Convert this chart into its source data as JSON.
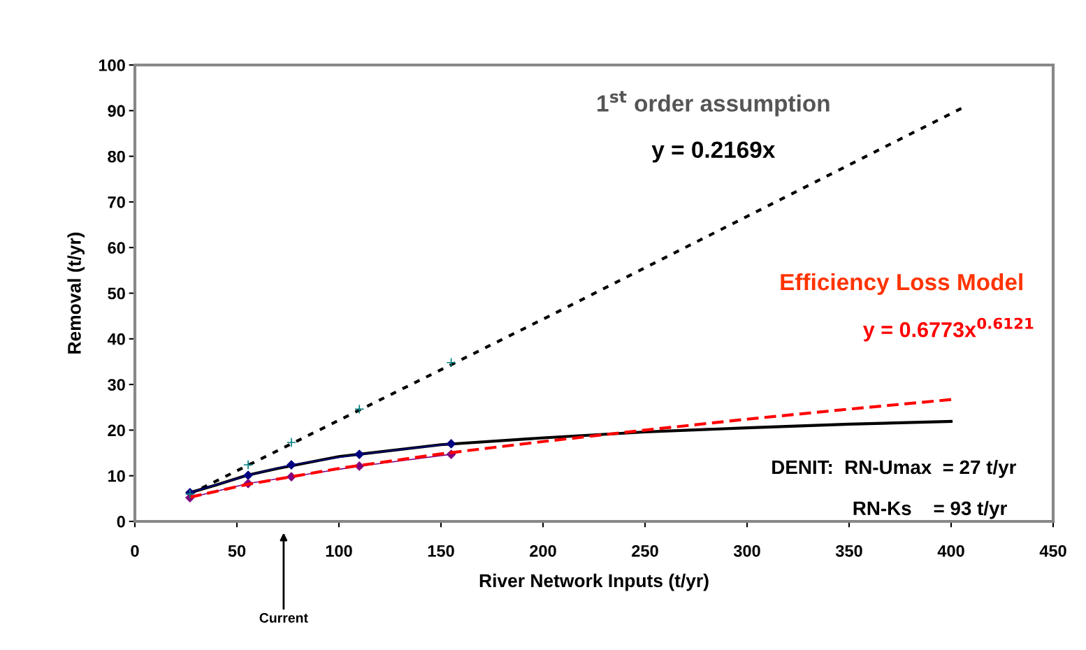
{
  "chart_data": {
    "type": "line",
    "xlabel": "River Network Inputs (t/yr)",
    "ylabel": "Removal (t/yr)",
    "xlim": [
      0,
      450
    ],
    "xticks": [
      0,
      50,
      100,
      150,
      200,
      250,
      300,
      350,
      400,
      450
    ],
    "ylim": [
      0,
      100
    ],
    "yticks": [
      0,
      10,
      20,
      30,
      40,
      50,
      60,
      70,
      80,
      90,
      100
    ],
    "grid": false,
    "legend": false,
    "series": [
      {
        "color": "#000000",
        "line_style": "dotted",
        "marker": "none",
        "x": [
          27,
          200,
          405
        ],
        "values": [
          6,
          44.3,
          90.5
        ]
      },
      {
        "type": "scatter",
        "color": "#008080",
        "marker": "cross",
        "x": [
          27,
          55.5,
          76.7,
          110,
          155
        ],
        "values": [
          6,
          12.4,
          17.3,
          24.6,
          34.8
        ]
      },
      {
        "color": "#000000",
        "line_style": "solid",
        "marker": "none",
        "x": [
          27,
          40,
          55,
          70,
          100,
          150,
          200,
          250,
          300,
          350,
          400
        ],
        "values": [
          6.3,
          8,
          10.1,
          11.6,
          14.2,
          16.8,
          18.3,
          19.6,
          20.5,
          21.3,
          21.9
        ]
      },
      {
        "color": "#000080",
        "line_style": "solid",
        "marker": "diamond",
        "x": [
          27,
          55.5,
          76.7,
          110,
          155
        ],
        "values": [
          6.3,
          10.1,
          12.4,
          14.7,
          17.0
        ]
      },
      {
        "color": "#800080",
        "line_style": "solid",
        "marker": "diamond",
        "x": [
          27,
          55.5,
          76.7,
          110,
          155
        ],
        "values": [
          5.2,
          8.3,
          9.8,
          12.1,
          14.7
        ]
      },
      {
        "color": "#ff0000",
        "line_style": "dashed",
        "marker": "none",
        "x": [
          27,
          55,
          100,
          150,
          200,
          250,
          300,
          350,
          400
        ],
        "values": [
          5.3,
          8.1,
          11.6,
          14.8,
          17.5,
          20,
          22.4,
          24.6,
          26.7
        ]
      }
    ],
    "annotations": [
      "1$^{st}$ order assumption",
      "y = 0.2169x",
      "Efficiency Loss Model",
      "y = 0.6773x$^{0.6121}$",
      "DENIT:  RN-Umax  = 27 t/yr",
      "RN-Ks    = 93 t/yr",
      "Current"
    ]
  }
}
